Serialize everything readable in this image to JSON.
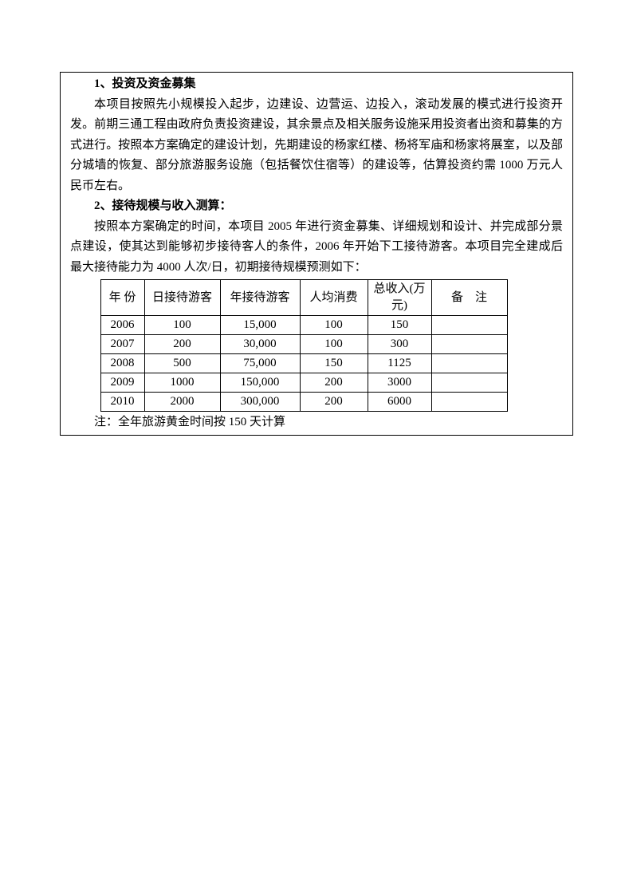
{
  "section1": {
    "heading": "1、投资及资金募集",
    "paragraph": "本项目按照先小规模投入起步，边建设、边营运、边投入，滚动发展的模式进行投资开发。前期三通工程由政府负责投资建设，其余景点及相关服务设施采用投资者出资和募集的方式进行。按照本方案确定的建设计划，先期建设的杨家红楼、杨将军庙和杨家将展室，以及部分城墙的恢复、部分旅游服务设施（包括餐饮住宿等）的建设等，估算投资约需 1000 万元人民币左右。"
  },
  "section2": {
    "heading": "2、接待规模与收入测算：",
    "paragraph": "按照本方案确定的时间，本项目 2005 年进行资金募集、详细规划和设计、并完成部分景点建设，使其达到能够初步接待客人的条件，2006 年开始下工接待游客。本项目完全建成后最大接待能力为 4000 人次/日，初期接待规模预测如下："
  },
  "table": {
    "columns": [
      "年 份",
      "日接待游客",
      "年接待游客",
      "人均消费",
      "总收入(万元)",
      "备　注"
    ],
    "rows": [
      [
        "2006",
        "100",
        "15,000",
        "100",
        "150",
        ""
      ],
      [
        "2007",
        "200",
        "30,000",
        "100",
        "300",
        ""
      ],
      [
        "2008",
        "500",
        "75,000",
        "150",
        "1125",
        ""
      ],
      [
        "2009",
        "1000",
        "150,000",
        "200",
        "3000",
        ""
      ],
      [
        "2010",
        "2000",
        "300,000",
        "200",
        "6000",
        ""
      ]
    ]
  },
  "note": "注：全年旅游黄金时间按 150 天计算"
}
